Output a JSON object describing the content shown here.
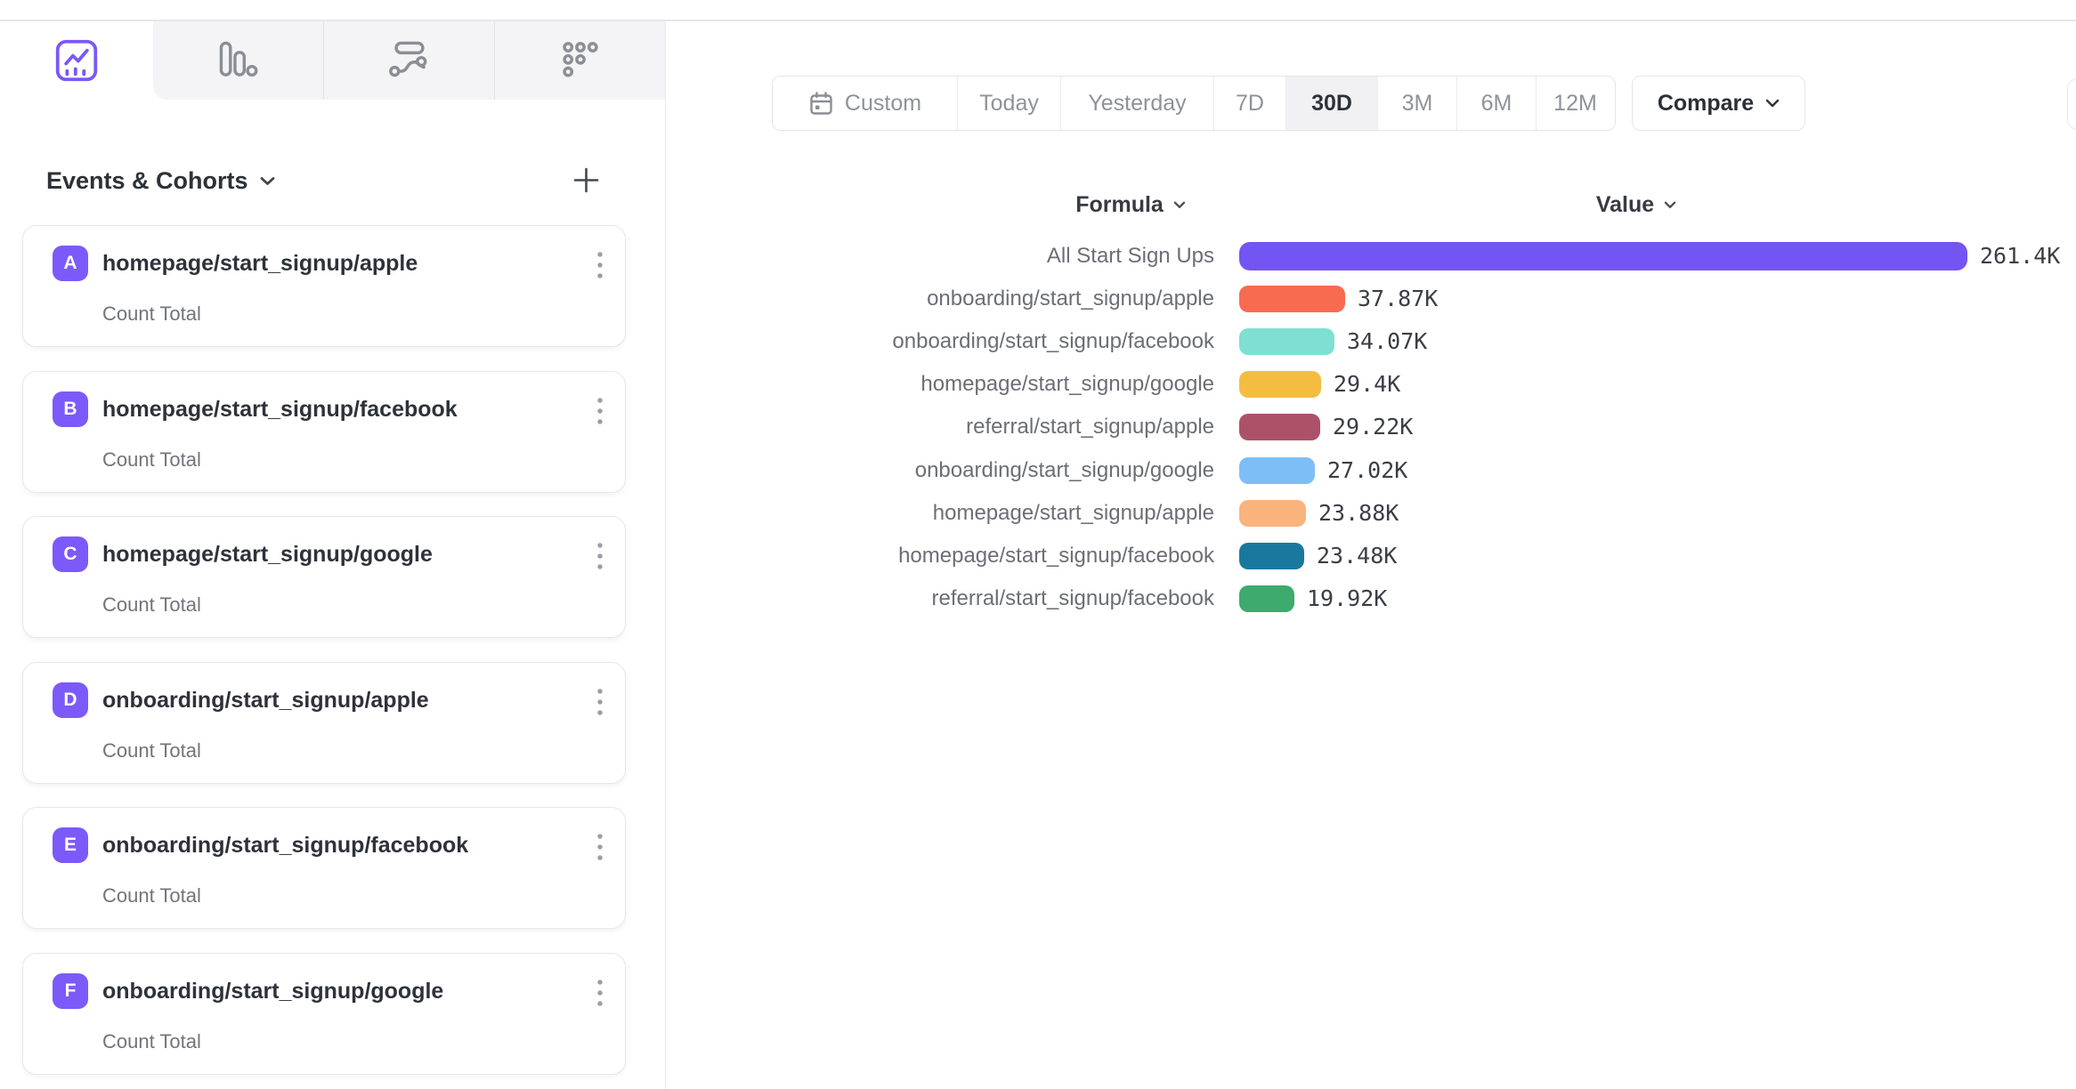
{
  "tabs": {
    "items": [
      {
        "id": "insights",
        "icon": "line-chart-icon",
        "active": true
      },
      {
        "id": "funnels",
        "icon": "funnel-bars-icon",
        "active": false
      },
      {
        "id": "flows",
        "icon": "flow-wave-icon",
        "active": false
      },
      {
        "id": "retention",
        "icon": "dots-grid-icon",
        "active": false
      }
    ],
    "active_color": "#7b57f6",
    "inactive_color": "#8b8e94"
  },
  "sidebar": {
    "title": "Events & Cohorts",
    "add_label": "+",
    "badge_color": "#7b5af9",
    "events": [
      {
        "badge": "A",
        "name": "homepage/start_signup/apple",
        "metric": "Count Total"
      },
      {
        "badge": "B",
        "name": "homepage/start_signup/facebook",
        "metric": "Count Total"
      },
      {
        "badge": "C",
        "name": "homepage/start_signup/google",
        "metric": "Count Total"
      },
      {
        "badge": "D",
        "name": "onboarding/start_signup/apple",
        "metric": "Count Total"
      },
      {
        "badge": "E",
        "name": "onboarding/start_signup/facebook",
        "metric": "Count Total"
      },
      {
        "badge": "F",
        "name": "onboarding/start_signup/google",
        "metric": "Count Total"
      }
    ]
  },
  "toolbar": {
    "date_ranges": [
      "Custom",
      "Today",
      "Yesterday",
      "7D",
      "30D",
      "3M",
      "6M",
      "12M"
    ],
    "selected_range": "30D",
    "selected_index": 4,
    "calendar_icon": "calendar-icon",
    "compare_label": "Compare"
  },
  "chart": {
    "formula_header": "Formula",
    "value_header": "Value"
  },
  "chart_data": {
    "type": "bar",
    "orientation": "horizontal",
    "title": "",
    "xlabel": "Value",
    "ylabel": "Formula",
    "categories": [
      "All Start Sign Ups",
      "onboarding/start_signup/apple",
      "onboarding/start_signup/facebook",
      "homepage/start_signup/google",
      "referral/start_signup/apple",
      "onboarding/start_signup/google",
      "homepage/start_signup/apple",
      "homepage/start_signup/facebook",
      "referral/start_signup/facebook"
    ],
    "values": [
      261400,
      37870,
      34070,
      29400,
      29220,
      27020,
      23880,
      23480,
      19920
    ],
    "value_labels": [
      "261.4K",
      "37.87K",
      "34.07K",
      "29.4K",
      "29.22K",
      "27.02K",
      "23.88K",
      "23.48K",
      "19.92K"
    ],
    "colors": [
      "#7355f3",
      "#f96b51",
      "#7de0d2",
      "#f4bd42",
      "#ad5168",
      "#7ebef6",
      "#fab37d",
      "#1a789e",
      "#3eaa6e"
    ],
    "xlim": [
      0,
      261400
    ],
    "grid": false,
    "legend": false
  }
}
